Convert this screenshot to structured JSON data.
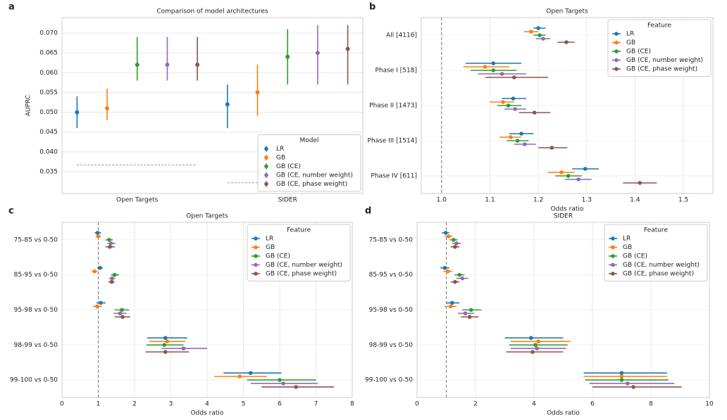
{
  "chart_data": [
    {
      "type": "errorbar",
      "panel": "a",
      "title": "Comparison of model architectures",
      "ylabel": "AUPRC",
      "categories": [
        "Open Targets",
        "SIDER"
      ],
      "ylim": [
        0.0295,
        0.0739
      ],
      "yticks": [
        0.035,
        {
          "value": 0.04,
          "label": "0.040"
        },
        0.045,
        {
          "value": 0.05,
          "label": "0.050"
        },
        0.055,
        {
          "value": 0.06,
          "label": "0.060"
        },
        0.065,
        {
          "value": 0.07,
          "label": "0.070"
        }
      ],
      "baselines": [
        0.0367,
        0.0322
      ],
      "grid": true,
      "legend": "lower right",
      "legend_title": "Model",
      "series": [
        {
          "name": "LR",
          "color": "#1f77b4",
          "values": [
            0.05,
            0.052
          ],
          "lower": [
            0.046,
            0.046
          ],
          "upper": [
            0.054,
            0.057
          ]
        },
        {
          "name": "GB",
          "color": "#ff7f0e",
          "values": [
            0.051,
            0.055
          ],
          "lower": [
            0.048,
            0.049
          ],
          "upper": [
            0.056,
            0.062
          ]
        },
        {
          "name": "GB (CE)",
          "color": "#2ca02c",
          "values": [
            0.062,
            0.064
          ],
          "lower": [
            0.058,
            0.057
          ],
          "upper": [
            0.069,
            0.071
          ]
        },
        {
          "name": "GB (CE, number weight)",
          "color": "#9467bd",
          "values": [
            0.062,
            0.065
          ],
          "lower": [
            0.058,
            0.057
          ],
          "upper": [
            0.069,
            0.072
          ]
        },
        {
          "name": "GB (CE, phase weight)",
          "color": "#8c564b",
          "values": [
            0.062,
            0.066
          ],
          "lower": [
            0.058,
            0.057
          ],
          "upper": [
            0.069,
            0.072
          ]
        }
      ]
    },
    {
      "type": "forest",
      "panel": "b",
      "title": "Open Targets",
      "xlabel": "Odds ratio",
      "categories": [
        "All [4116]",
        "Phase I [518]",
        "Phase II [1473]",
        "Phase III [1514]",
        "Phase IV [611]"
      ],
      "xlim": [
        0.958,
        1.561
      ],
      "xticks": [
        {
          "value": 1,
          "label": "1.0"
        },
        1.1,
        1.2,
        1.3,
        1.4,
        1.5
      ],
      "refline": 1,
      "grid": true,
      "legend": "upper right",
      "legend_title": "Feature",
      "series": [
        {
          "name": "LR",
          "color": "#1f77b4",
          "values": [
            1.2,
            1.107,
            1.148,
            1.165,
            1.297
          ],
          "lower": [
            1.19,
            1.05,
            1.125,
            1.14,
            1.27
          ],
          "upper": [
            1.215,
            1.165,
            1.175,
            1.19,
            1.325
          ]
        },
        {
          "name": "GB",
          "color": "#ff7f0e",
          "values": [
            1.185,
            1.09,
            1.127,
            1.143,
            1.248
          ],
          "lower": [
            1.17,
            1.045,
            1.1,
            1.12,
            1.22
          ],
          "upper": [
            1.2,
            1.14,
            1.15,
            1.165,
            1.275
          ]
        },
        {
          "name": "GB (CE)",
          "color": "#2ca02c",
          "values": [
            1.203,
            1.107,
            1.138,
            1.157,
            1.262
          ],
          "lower": [
            1.19,
            1.06,
            1.115,
            1.135,
            1.235
          ],
          "upper": [
            1.215,
            1.155,
            1.165,
            1.18,
            1.29
          ]
        },
        {
          "name": "GB (CE, number weight)",
          "color": "#9467bd",
          "values": [
            1.21,
            1.125,
            1.152,
            1.172,
            1.283
          ],
          "lower": [
            1.195,
            1.075,
            1.13,
            1.15,
            1.255
          ],
          "upper": [
            1.225,
            1.175,
            1.175,
            1.195,
            1.31
          ]
        },
        {
          "name": "GB (CE, phase weight)",
          "color": "#8c564b",
          "values": [
            1.258,
            1.15,
            1.192,
            1.228,
            1.41
          ],
          "lower": [
            1.24,
            1.09,
            1.16,
            1.2,
            1.375
          ],
          "upper": [
            1.275,
            1.22,
            1.225,
            1.26,
            1.445
          ]
        }
      ]
    },
    {
      "type": "forest",
      "panel": "c",
      "title": "Open Targets",
      "xlabel": "Odds ratio",
      "categories": [
        "75-85 vs 0-50",
        "85-95 vs 0-50",
        "95-98 vs 0-50",
        "98-99 vs 0-50",
        "99-100 vs 0-50"
      ],
      "xlim": [
        0,
        8
      ],
      "xticks": [
        0,
        1,
        2,
        3,
        4,
        5,
        6,
        7,
        8
      ],
      "refline": 1,
      "grid": true,
      "legend": "upper right",
      "legend_title": "Feature",
      "series": [
        {
          "name": "LR",
          "color": "#1f77b4",
          "values": [
            0.98,
            1.05,
            1.07,
            2.85,
            5.2
          ],
          "lower": [
            0.9,
            0.97,
            0.95,
            2.35,
            4.45
          ],
          "upper": [
            1.08,
            1.12,
            1.2,
            3.45,
            6.05
          ]
        },
        {
          "name": "GB",
          "color": "#ff7f0e",
          "values": [
            1.0,
            0.9,
            0.97,
            2.9,
            4.9
          ],
          "lower": [
            0.93,
            0.82,
            0.85,
            2.4,
            4.2
          ],
          "upper": [
            1.07,
            0.98,
            1.1,
            3.4,
            5.65
          ]
        },
        {
          "name": "GB (CE)",
          "color": "#2ca02c",
          "values": [
            1.3,
            1.45,
            1.65,
            2.82,
            6.0
          ],
          "lower": [
            1.2,
            1.35,
            1.45,
            2.33,
            5.1
          ],
          "upper": [
            1.4,
            1.57,
            1.85,
            3.35,
            7.0
          ]
        },
        {
          "name": "GB (CE, number weight)",
          "color": "#9467bd",
          "values": [
            1.35,
            1.38,
            1.6,
            3.35,
            6.1
          ],
          "lower": [
            1.25,
            1.3,
            1.42,
            2.75,
            5.2
          ],
          "upper": [
            1.47,
            1.47,
            1.78,
            4.0,
            7.05
          ]
        },
        {
          "name": "GB (CE, phase weight)",
          "color": "#8c564b",
          "values": [
            1.32,
            1.37,
            1.67,
            2.85,
            6.45
          ],
          "lower": [
            1.2,
            1.28,
            1.45,
            2.3,
            5.5
          ],
          "upper": [
            1.45,
            1.45,
            1.88,
            3.5,
            7.5
          ]
        }
      ]
    },
    {
      "type": "forest",
      "panel": "d",
      "title": "SIDER",
      "xlabel": "Odds ratio",
      "categories": [
        "75-85 vs 0-50",
        "85-95 vs 0-50",
        "95-98 vs 0-50",
        "98-99 vs 0-50",
        "99-100 vs 0-50"
      ],
      "xlim": [
        0,
        10
      ],
      "xticks": [
        0,
        2,
        4,
        6,
        8,
        10
      ],
      "refline": 1,
      "grid": true,
      "legend": "upper right",
      "legend_title": "Feature",
      "series": [
        {
          "name": "LR",
          "color": "#1f77b4",
          "values": [
            0.98,
            0.95,
            1.2,
            3.9,
            7.0
          ],
          "lower": [
            0.85,
            0.8,
            1.0,
            3.0,
            5.7
          ],
          "upper": [
            1.1,
            1.1,
            1.45,
            5.0,
            8.55
          ]
        },
        {
          "name": "GB",
          "color": "#ff7f0e",
          "values": [
            1.08,
            1.05,
            1.15,
            4.15,
            7.0
          ],
          "lower": [
            0.95,
            0.9,
            0.95,
            3.2,
            5.7
          ],
          "upper": [
            1.2,
            1.2,
            1.35,
            5.25,
            8.55
          ]
        },
        {
          "name": "GB (CE)",
          "color": "#2ca02c",
          "values": [
            1.25,
            1.45,
            1.85,
            4.05,
            7.0
          ],
          "lower": [
            1.12,
            1.28,
            1.55,
            3.15,
            5.75
          ],
          "upper": [
            1.38,
            1.62,
            2.2,
            5.15,
            8.6
          ]
        },
        {
          "name": "GB (CE, number weight)",
          "color": "#9467bd",
          "values": [
            1.35,
            1.55,
            1.65,
            4.1,
            7.2
          ],
          "lower": [
            1.2,
            1.35,
            1.4,
            3.2,
            5.9
          ],
          "upper": [
            1.5,
            1.75,
            1.95,
            5.1,
            8.8
          ]
        },
        {
          "name": "GB (CE, phase weight)",
          "color": "#8c564b",
          "values": [
            1.3,
            1.3,
            1.8,
            3.95,
            7.4
          ],
          "lower": [
            1.15,
            1.15,
            1.5,
            3.05,
            6.0
          ],
          "upper": [
            1.45,
            1.45,
            2.1,
            5.0,
            9.05
          ]
        }
      ]
    }
  ]
}
